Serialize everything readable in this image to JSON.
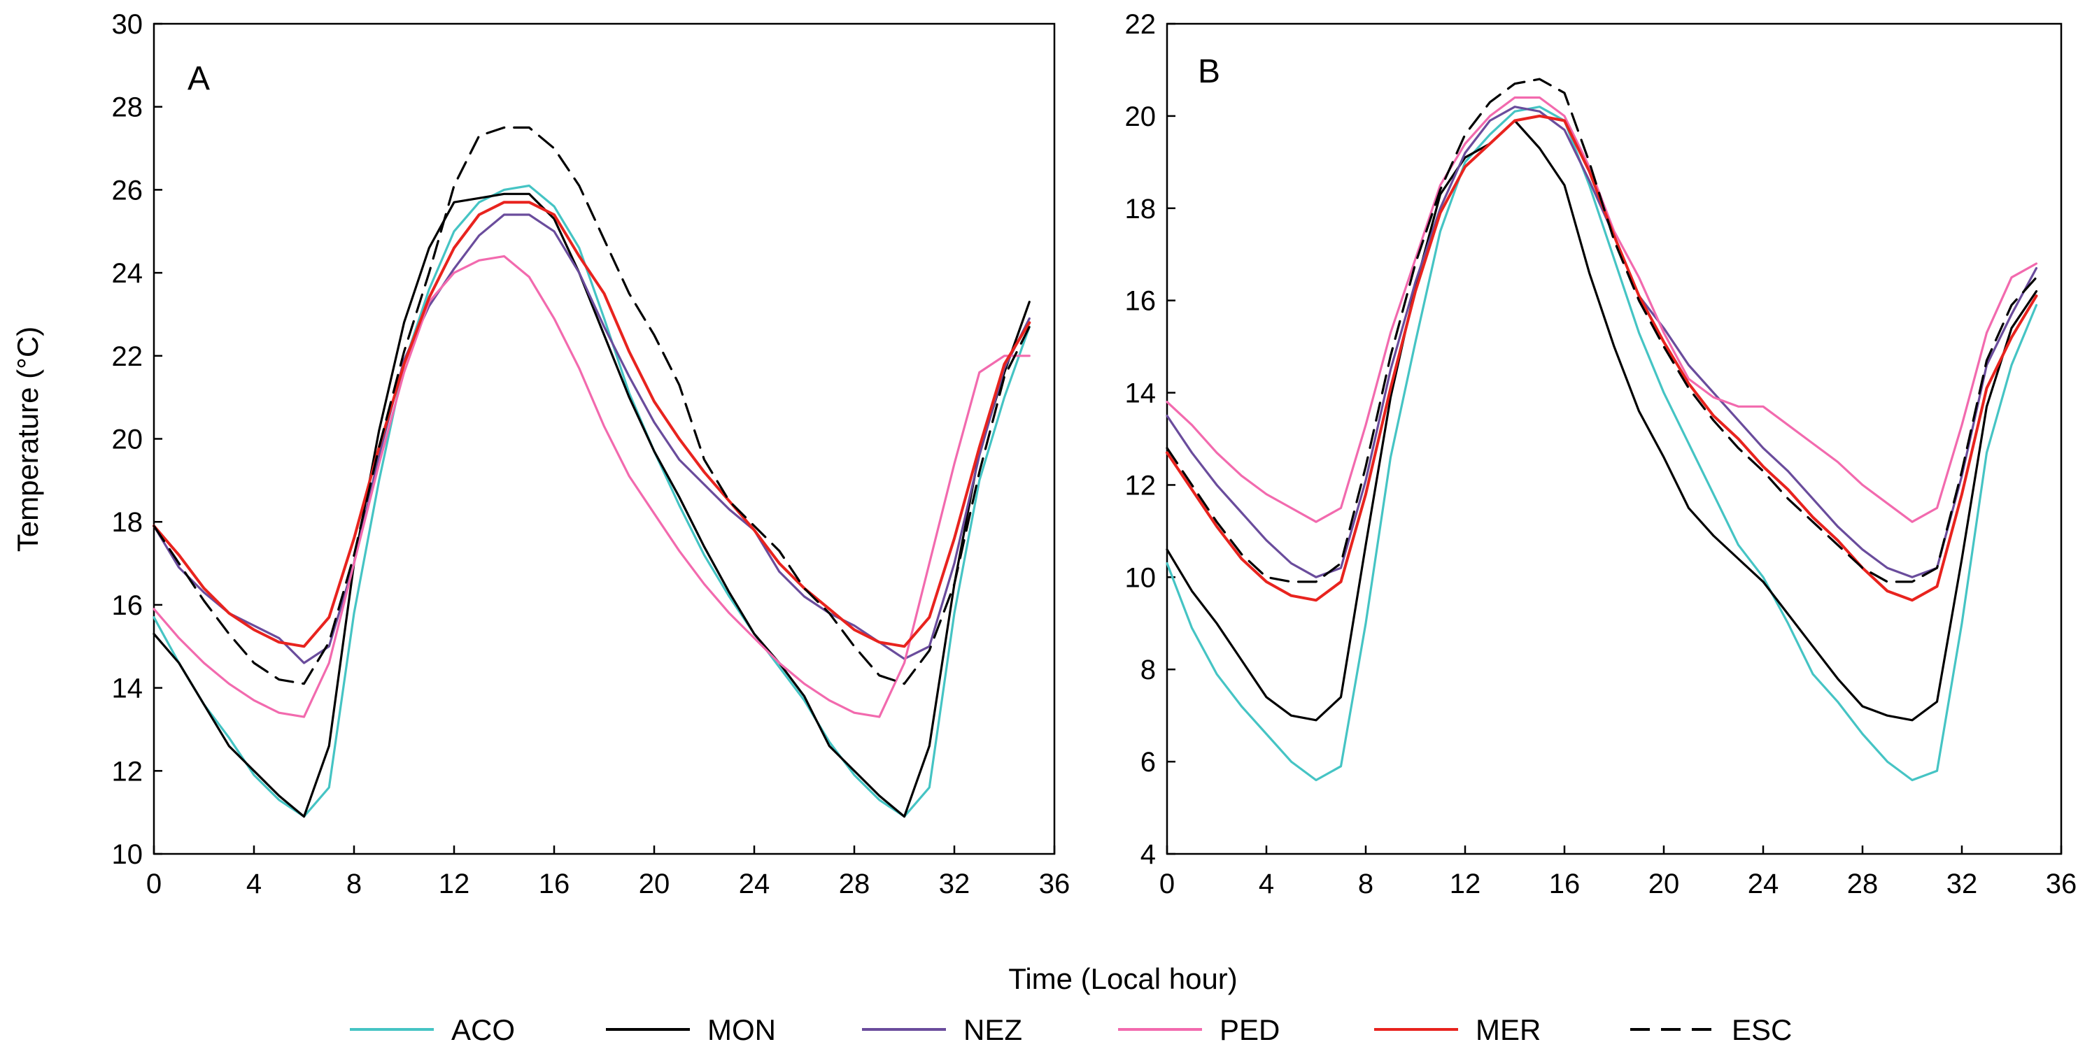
{
  "figure": {
    "xlabel": "Time (Local hour)",
    "ylabel": "Temperature (°C)"
  },
  "legend": {
    "items": [
      {
        "key": "ACO",
        "label": "ACO",
        "color": "#45C4C4",
        "dash": false
      },
      {
        "key": "MON",
        "label": "MON",
        "color": "#000000",
        "dash": false
      },
      {
        "key": "NEZ",
        "label": "NEZ",
        "color": "#6A4C9C",
        "dash": false
      },
      {
        "key": "PED",
        "label": "PED",
        "color": "#F26AAE",
        "dash": false
      },
      {
        "key": "MER",
        "label": "MER",
        "color": "#E8231E",
        "dash": false
      },
      {
        "key": "ESC",
        "label": "ESC",
        "color": "#000000",
        "dash": true
      }
    ]
  },
  "chart_data": [
    {
      "type": "line",
      "panel_label": "A",
      "xlabel": "Time (Local hour)",
      "ylabel": "Temperature (°C)",
      "xlim": [
        0,
        36
      ],
      "ylim": [
        10,
        30
      ],
      "xticks": [
        0,
        4,
        8,
        12,
        16,
        20,
        24,
        28,
        32,
        36
      ],
      "yticks": [
        10,
        12,
        14,
        16,
        18,
        20,
        22,
        24,
        26,
        28,
        30
      ],
      "series": [
        {
          "name": "ACO",
          "x": [
            0,
            1,
            2,
            3,
            4,
            5,
            6,
            7,
            8,
            9,
            10,
            11,
            12,
            13,
            14,
            15,
            16,
            17,
            18,
            19,
            20,
            21,
            22,
            23,
            24,
            25,
            26,
            27,
            28,
            29,
            30,
            31,
            32,
            33,
            34,
            35
          ],
          "y": [
            15.7,
            14.6,
            13.6,
            12.8,
            11.9,
            11.3,
            10.9,
            11.6,
            15.8,
            19.0,
            21.8,
            23.6,
            25.0,
            25.7,
            26.0,
            26.1,
            25.6,
            24.6,
            22.9,
            21.1,
            19.7,
            18.4,
            17.2,
            16.2,
            15.3,
            14.5,
            13.7,
            12.7,
            11.9,
            11.3,
            10.9,
            11.6,
            15.8,
            19.0,
            21.0,
            22.7
          ]
        },
        {
          "name": "MON",
          "x": [
            0,
            1,
            2,
            3,
            4,
            5,
            6,
            7,
            8,
            9,
            10,
            11,
            12,
            13,
            14,
            15,
            16,
            17,
            18,
            19,
            20,
            21,
            22,
            23,
            24,
            25,
            26,
            27,
            28,
            29,
            30,
            31,
            32,
            33,
            34,
            35
          ],
          "y": [
            15.3,
            14.6,
            13.6,
            12.6,
            12.0,
            11.4,
            10.9,
            12.6,
            17.0,
            20.2,
            22.8,
            24.6,
            25.7,
            25.8,
            25.9,
            25.9,
            25.3,
            24.0,
            22.5,
            21.0,
            19.7,
            18.6,
            17.4,
            16.3,
            15.3,
            14.6,
            13.8,
            12.6,
            12.0,
            11.4,
            10.9,
            12.6,
            16.5,
            19.7,
            21.6,
            23.3
          ]
        },
        {
          "name": "NEZ",
          "x": [
            0,
            1,
            2,
            3,
            4,
            5,
            6,
            7,
            8,
            9,
            10,
            11,
            12,
            13,
            14,
            15,
            16,
            17,
            18,
            19,
            20,
            21,
            22,
            23,
            24,
            25,
            26,
            27,
            28,
            29,
            30,
            31,
            32,
            33,
            34,
            35
          ],
          "y": [
            17.9,
            16.9,
            16.3,
            15.8,
            15.5,
            15.2,
            14.6,
            15.0,
            17.0,
            19.6,
            21.9,
            23.2,
            24.1,
            24.9,
            25.4,
            25.4,
            25.0,
            24.0,
            22.7,
            21.5,
            20.4,
            19.5,
            18.9,
            18.3,
            17.8,
            16.8,
            16.2,
            15.8,
            15.5,
            15.1,
            14.7,
            15.0,
            17.0,
            19.6,
            21.7,
            22.9
          ]
        },
        {
          "name": "PED",
          "x": [
            0,
            1,
            2,
            3,
            4,
            5,
            6,
            7,
            8,
            9,
            10,
            11,
            12,
            13,
            14,
            15,
            16,
            17,
            18,
            19,
            20,
            21,
            22,
            23,
            24,
            25,
            26,
            27,
            28,
            29,
            30,
            31,
            32,
            33,
            34,
            35
          ],
          "y": [
            15.9,
            15.2,
            14.6,
            14.1,
            13.7,
            13.4,
            13.3,
            14.6,
            17.0,
            19.4,
            21.6,
            23.3,
            24.0,
            24.3,
            24.4,
            23.9,
            22.9,
            21.7,
            20.3,
            19.1,
            18.2,
            17.3,
            16.5,
            15.8,
            15.2,
            14.6,
            14.1,
            13.7,
            13.4,
            13.3,
            14.6,
            17.0,
            19.4,
            21.6,
            22.0,
            22.0
          ]
        },
        {
          "name": "MER",
          "x": [
            0,
            1,
            2,
            3,
            4,
            5,
            6,
            7,
            8,
            9,
            10,
            11,
            12,
            13,
            14,
            15,
            16,
            17,
            18,
            19,
            20,
            21,
            22,
            23,
            24,
            25,
            26,
            27,
            28,
            29,
            30,
            31,
            32,
            33,
            34,
            35
          ],
          "y": [
            17.9,
            17.2,
            16.4,
            15.8,
            15.4,
            15.1,
            15.0,
            15.7,
            17.6,
            19.8,
            21.8,
            23.4,
            24.6,
            25.4,
            25.7,
            25.7,
            25.4,
            24.4,
            23.5,
            22.1,
            20.9,
            20.0,
            19.2,
            18.5,
            17.8,
            17.0,
            16.4,
            15.9,
            15.4,
            15.1,
            15.0,
            15.7,
            17.6,
            19.8,
            21.8,
            22.8
          ]
        },
        {
          "name": "ESC",
          "x": [
            0,
            1,
            2,
            3,
            4,
            5,
            6,
            7,
            8,
            9,
            10,
            11,
            12,
            13,
            14,
            15,
            16,
            17,
            18,
            19,
            20,
            21,
            22,
            23,
            24,
            25,
            26,
            27,
            28,
            29,
            30,
            31,
            32,
            33,
            34,
            35
          ],
          "y": [
            17.9,
            17.0,
            16.1,
            15.3,
            14.6,
            14.2,
            14.1,
            15.1,
            17.2,
            19.8,
            22.1,
            24.0,
            26.1,
            27.3,
            27.5,
            27.5,
            27.0,
            26.1,
            24.8,
            23.5,
            22.5,
            21.3,
            19.5,
            18.5,
            17.9,
            17.3,
            16.4,
            15.8,
            15.0,
            14.3,
            14.1,
            14.9,
            16.5,
            19.2,
            21.5,
            22.7
          ]
        }
      ]
    },
    {
      "type": "line",
      "panel_label": "B",
      "xlabel": "Time (Local hour)",
      "ylabel": "",
      "xlim": [
        0,
        36
      ],
      "ylim": [
        4,
        22
      ],
      "xticks": [
        0,
        4,
        8,
        12,
        16,
        20,
        24,
        28,
        32,
        36
      ],
      "yticks": [
        4,
        6,
        8,
        10,
        12,
        14,
        16,
        18,
        20,
        22
      ],
      "series": [
        {
          "name": "ACO",
          "x": [
            0,
            1,
            2,
            3,
            4,
            5,
            6,
            7,
            8,
            9,
            10,
            11,
            12,
            13,
            14,
            15,
            16,
            17,
            18,
            19,
            20,
            21,
            22,
            23,
            24,
            25,
            26,
            27,
            28,
            29,
            30,
            31,
            32,
            33,
            34,
            35
          ],
          "y": [
            10.3,
            8.9,
            7.9,
            7.2,
            6.6,
            6.0,
            5.6,
            5.9,
            9.0,
            12.6,
            15.1,
            17.5,
            19.0,
            19.6,
            20.1,
            20.2,
            19.9,
            18.5,
            16.9,
            15.3,
            14.0,
            12.9,
            11.8,
            10.7,
            10.0,
            9.0,
            7.9,
            7.3,
            6.6,
            6.0,
            5.6,
            5.8,
            9.0,
            12.7,
            14.6,
            15.9
          ]
        },
        {
          "name": "MON",
          "x": [
            0,
            1,
            2,
            3,
            4,
            5,
            6,
            7,
            8,
            9,
            10,
            11,
            12,
            13,
            14,
            15,
            16,
            17,
            18,
            19,
            20,
            21,
            22,
            23,
            24,
            25,
            26,
            27,
            28,
            29,
            30,
            31,
            32,
            33,
            34,
            35
          ],
          "y": [
            10.6,
            9.7,
            9.0,
            8.2,
            7.4,
            7.0,
            6.9,
            7.4,
            10.7,
            13.9,
            16.3,
            18.3,
            19.1,
            19.4,
            19.9,
            19.3,
            18.5,
            16.6,
            15.0,
            13.6,
            12.6,
            11.5,
            10.9,
            10.4,
            9.9,
            9.2,
            8.5,
            7.8,
            7.2,
            7.0,
            6.9,
            7.3,
            10.4,
            13.7,
            15.4,
            16.2
          ]
        },
        {
          "name": "NEZ",
          "x": [
            0,
            1,
            2,
            3,
            4,
            5,
            6,
            7,
            8,
            9,
            10,
            11,
            12,
            13,
            14,
            15,
            16,
            17,
            18,
            19,
            20,
            21,
            22,
            23,
            24,
            25,
            26,
            27,
            28,
            29,
            30,
            31,
            32,
            33,
            34,
            35
          ],
          "y": [
            13.5,
            12.7,
            12.0,
            11.4,
            10.8,
            10.3,
            10.0,
            10.2,
            12.1,
            14.5,
            16.4,
            18.0,
            19.2,
            19.9,
            20.2,
            20.1,
            19.7,
            18.6,
            17.4,
            16.1,
            15.4,
            14.6,
            14.0,
            13.4,
            12.8,
            12.3,
            11.7,
            11.1,
            10.6,
            10.2,
            10.0,
            10.2,
            12.2,
            14.6,
            15.7,
            16.7
          ]
        },
        {
          "name": "PED",
          "x": [
            0,
            1,
            2,
            3,
            4,
            5,
            6,
            7,
            8,
            9,
            10,
            11,
            12,
            13,
            14,
            15,
            16,
            17,
            18,
            19,
            20,
            21,
            22,
            23,
            24,
            25,
            26,
            27,
            28,
            29,
            30,
            31,
            32,
            33,
            34,
            35
          ],
          "y": [
            13.8,
            13.3,
            12.7,
            12.2,
            11.8,
            11.5,
            11.2,
            11.5,
            13.3,
            15.3,
            16.9,
            18.5,
            19.4,
            20.0,
            20.4,
            20.4,
            20.0,
            18.9,
            17.5,
            16.5,
            15.3,
            14.3,
            13.9,
            13.7,
            13.7,
            13.3,
            12.9,
            12.5,
            12.0,
            11.6,
            11.2,
            11.5,
            13.3,
            15.3,
            16.5,
            16.8
          ]
        },
        {
          "name": "MER",
          "x": [
            0,
            1,
            2,
            3,
            4,
            5,
            6,
            7,
            8,
            9,
            10,
            11,
            12,
            13,
            14,
            15,
            16,
            17,
            18,
            19,
            20,
            21,
            22,
            23,
            24,
            25,
            26,
            27,
            28,
            29,
            30,
            31,
            32,
            33,
            34,
            35
          ],
          "y": [
            12.7,
            11.9,
            11.1,
            10.4,
            9.9,
            9.6,
            9.5,
            9.9,
            11.8,
            14.1,
            16.2,
            17.9,
            18.9,
            19.4,
            19.9,
            20.0,
            19.9,
            18.8,
            17.4,
            16.1,
            15.1,
            14.2,
            13.5,
            13.0,
            12.4,
            11.9,
            11.3,
            10.8,
            10.2,
            9.7,
            9.5,
            9.8,
            11.8,
            14.1,
            15.2,
            16.1
          ]
        },
        {
          "name": "ESC",
          "x": [
            0,
            1,
            2,
            3,
            4,
            5,
            6,
            7,
            8,
            9,
            10,
            11,
            12,
            13,
            14,
            15,
            16,
            17,
            18,
            19,
            20,
            21,
            22,
            23,
            24,
            25,
            26,
            27,
            28,
            29,
            30,
            31,
            32,
            33,
            34,
            35
          ],
          "y": [
            12.8,
            12.0,
            11.2,
            10.5,
            10.0,
            9.9,
            9.9,
            10.3,
            12.4,
            14.8,
            16.8,
            18.4,
            19.6,
            20.3,
            20.7,
            20.8,
            20.5,
            19.0,
            17.3,
            16.0,
            15.0,
            14.1,
            13.4,
            12.8,
            12.3,
            11.7,
            11.2,
            10.7,
            10.2,
            9.9,
            9.9,
            10.2,
            12.3,
            14.7,
            15.9,
            16.5
          ]
        }
      ]
    }
  ]
}
